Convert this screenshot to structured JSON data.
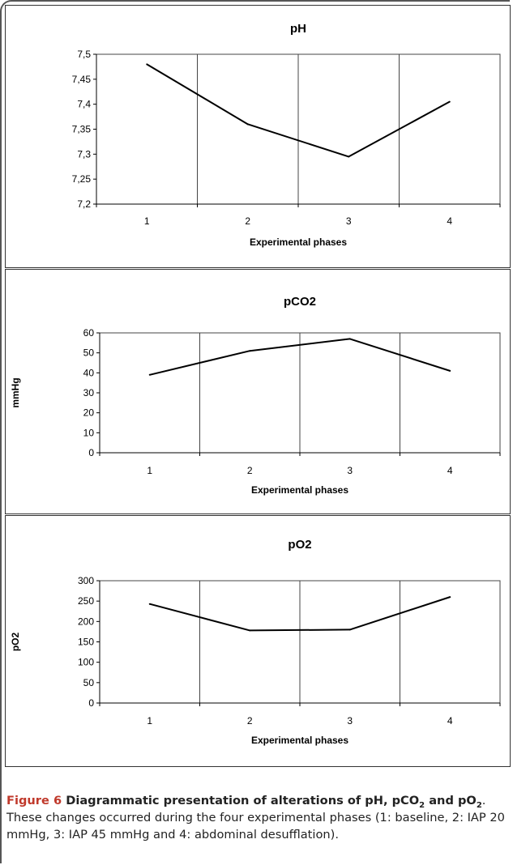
{
  "chart_data": [
    {
      "type": "line",
      "title": "pH",
      "xlabel": "Experimental phases",
      "ylabel": "",
      "categories": [
        "1",
        "2",
        "3",
        "4"
      ],
      "series": [
        {
          "values": [
            7.48,
            7.36,
            7.295,
            7.405
          ]
        }
      ],
      "ylim": [
        7.2,
        7.5
      ],
      "y_ticks": [
        "7,2",
        "7,25",
        "7,3",
        "7,35",
        "7,4",
        "7,45",
        "7,5"
      ],
      "grid": "vertical",
      "line_color": "#000000"
    },
    {
      "type": "line",
      "title": "pCO2",
      "xlabel": "Experimental phases",
      "ylabel": "mmHg",
      "categories": [
        "1",
        "2",
        "3",
        "4"
      ],
      "series": [
        {
          "values": [
            39,
            51,
            57,
            41
          ]
        }
      ],
      "ylim": [
        0,
        60
      ],
      "y_ticks": [
        "0",
        "10",
        "20",
        "30",
        "40",
        "50",
        "60"
      ],
      "grid": "vertical",
      "line_color": "#000000"
    },
    {
      "type": "line",
      "title": "pO2",
      "xlabel": "Experimental phases",
      "ylabel": "pO2",
      "categories": [
        "1",
        "2",
        "3",
        "4"
      ],
      "series": [
        {
          "values": [
            243,
            178,
            180,
            260
          ]
        }
      ],
      "ylim": [
        0,
        300
      ],
      "y_ticks": [
        "0",
        "50",
        "100",
        "150",
        "200",
        "250",
        "300"
      ],
      "grid": "vertical",
      "line_color": "#000000"
    }
  ],
  "caption": {
    "label": "Figure 6",
    "title_part1": " Diagrammatic presentation of alterations of pH, pCO",
    "sub1": "2",
    "title_part2": " and pO",
    "sub2": "2",
    "text": ". These changes occurred during the four experimental phases (1: baseline, 2: IAP 20 mmHg, 3: IAP 45 mmHg and 4: abdominal desufflation)."
  }
}
